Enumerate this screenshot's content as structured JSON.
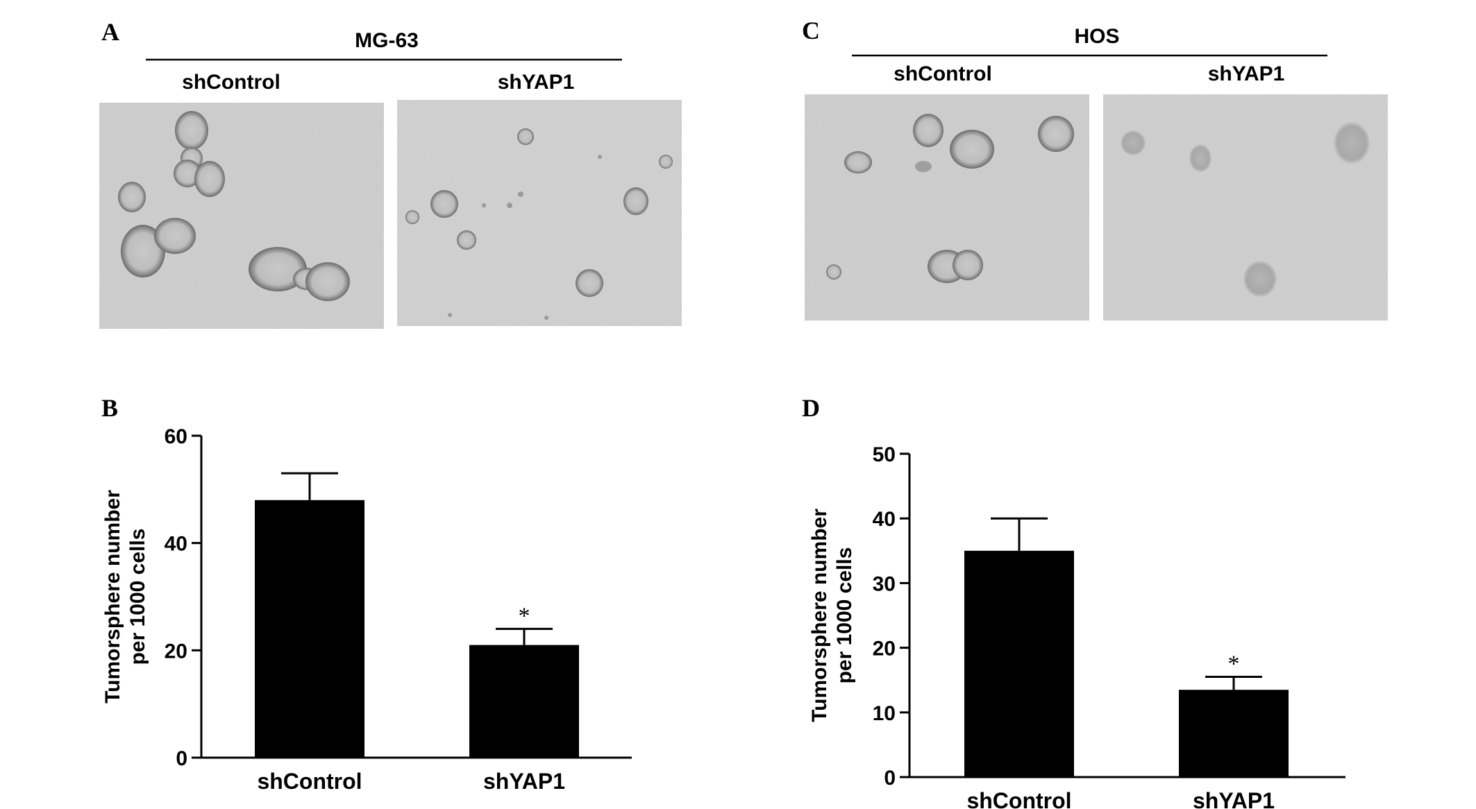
{
  "panel_a": {
    "letter": "A",
    "cell_line": "MG-63",
    "conditions": [
      "shControl",
      "shYAP1"
    ]
  },
  "panel_c": {
    "letter": "C",
    "cell_line": "HOS",
    "conditions": [
      "shControl",
      "shYAP1"
    ]
  },
  "chart_data": [
    {
      "letter": "B",
      "type": "bar",
      "categories": [
        "shControl",
        "shYAP1"
      ],
      "values": [
        48,
        21
      ],
      "errors": [
        5,
        3
      ],
      "annotations": [
        "",
        "*"
      ],
      "ylabel_line1": "Tumorsphere number",
      "ylabel_line2": "per 1000 cells",
      "ylim": [
        0,
        60
      ],
      "yticks": [
        0,
        20,
        40,
        60
      ],
      "bar_color": "#000000"
    },
    {
      "letter": "D",
      "type": "bar",
      "categories": [
        "shControl",
        "shYAP1"
      ],
      "values": [
        35,
        13.5
      ],
      "errors": [
        5,
        2
      ],
      "annotations": [
        "",
        "*"
      ],
      "ylabel_line1": "Tumorsphere number",
      "ylabel_line2": "per 1000 cells",
      "ylim": [
        0,
        50
      ],
      "yticks": [
        0,
        10,
        20,
        30,
        40,
        50
      ],
      "bar_color": "#000000"
    }
  ]
}
